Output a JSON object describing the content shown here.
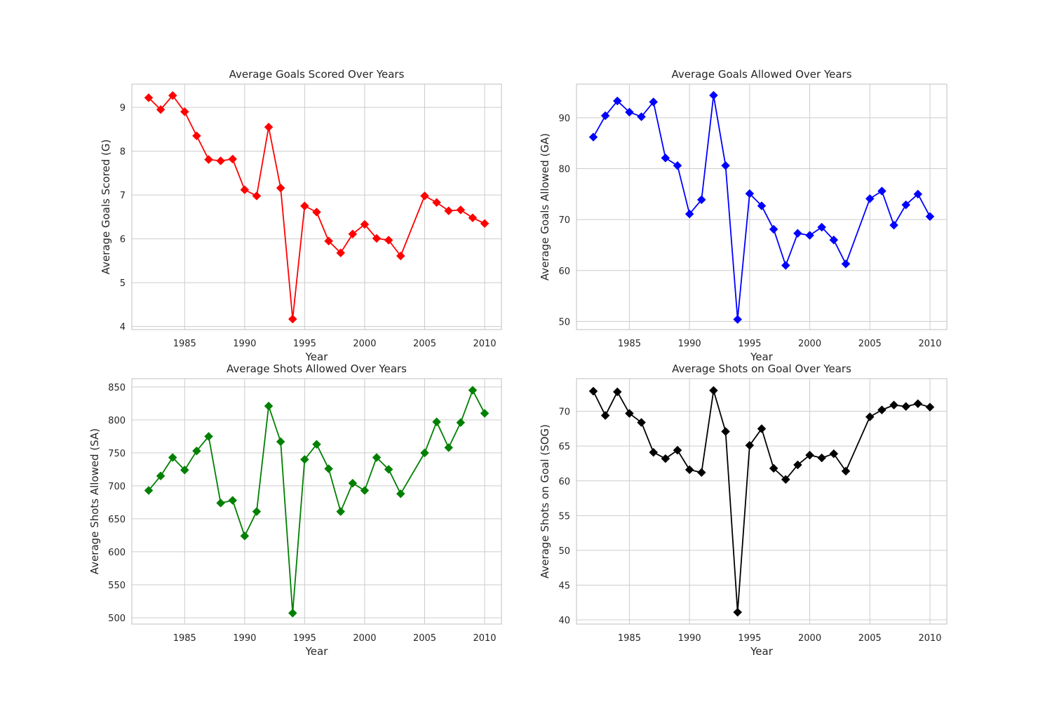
{
  "chart_data": [
    {
      "type": "line",
      "title": "Average Goals Scored Over Years",
      "xlabel": "Year",
      "ylabel": "Average Goals Scored (G)",
      "color": "#ff0000",
      "marker": "diamond",
      "grid": true,
      "xlim": [
        1980.6,
        2011.4
      ],
      "ylim": [
        3.93,
        9.53
      ],
      "xticks": [
        1985,
        1990,
        1995,
        2000,
        2005,
        2010
      ],
      "yticks": [
        4,
        5,
        6,
        7,
        8,
        9
      ],
      "x": [
        1982,
        1983,
        1984,
        1985,
        1986,
        1987,
        1988,
        1989,
        1990,
        1991,
        1992,
        1993,
        1994,
        1995,
        1996,
        1997,
        1998,
        1999,
        2000,
        2001,
        2002,
        2003,
        2005,
        2006,
        2007,
        2008,
        2009,
        2010
      ],
      "series": [
        {
          "values": [
            9.22,
            8.95,
            9.27,
            8.9,
            8.35,
            7.81,
            7.78,
            7.82,
            7.12,
            6.98,
            8.55,
            7.16,
            4.17,
            6.75,
            6.61,
            5.95,
            5.68,
            6.11,
            6.33,
            6.01,
            5.97,
            5.61,
            6.98,
            6.83,
            6.64,
            6.66,
            6.48,
            6.35
          ]
        }
      ]
    },
    {
      "type": "line",
      "title": "Average Goals Allowed Over Years",
      "xlabel": "Year",
      "ylabel": "Average Goals Allowed (GA)",
      "color": "#0000ff",
      "marker": "diamond",
      "grid": true,
      "xlim": [
        1980.6,
        2011.4
      ],
      "ylim": [
        48.4,
        96.6
      ],
      "xticks": [
        1985,
        1990,
        1995,
        2000,
        2005,
        2010
      ],
      "yticks": [
        50,
        60,
        70,
        80,
        90
      ],
      "x": [
        1982,
        1983,
        1984,
        1985,
        1986,
        1987,
        1988,
        1989,
        1990,
        1991,
        1992,
        1993,
        1994,
        1995,
        1996,
        1997,
        1998,
        1999,
        2000,
        2001,
        2002,
        2003,
        2005,
        2006,
        2007,
        2008,
        2009,
        2010
      ],
      "series": [
        {
          "values": [
            86.2,
            90.4,
            93.3,
            91.1,
            90.2,
            93.1,
            82.1,
            80.6,
            71.1,
            73.9,
            94.4,
            80.6,
            50.4,
            75.1,
            72.7,
            68.1,
            61.0,
            67.3,
            66.9,
            68.5,
            66.0,
            61.3,
            74.1,
            75.6,
            68.9,
            72.9,
            75.0,
            70.6
          ]
        }
      ]
    },
    {
      "type": "line",
      "title": "Average Shots Allowed Over Years",
      "xlabel": "Year",
      "ylabel": "Average Shots Allowed (SA)",
      "color": "#008000",
      "marker": "diamond",
      "grid": true,
      "xlim": [
        1980.6,
        2011.4
      ],
      "ylim": [
        490.4,
        862.6
      ],
      "xticks": [
        1985,
        1990,
        1995,
        2000,
        2005,
        2010
      ],
      "yticks": [
        500,
        550,
        600,
        650,
        700,
        750,
        800,
        850
      ],
      "x": [
        1982,
        1983,
        1984,
        1985,
        1986,
        1987,
        1988,
        1989,
        1990,
        1991,
        1992,
        1993,
        1994,
        1995,
        1996,
        1997,
        1998,
        1999,
        2000,
        2001,
        2002,
        2003,
        2005,
        2006,
        2007,
        2008,
        2009,
        2010
      ],
      "series": [
        {
          "values": [
            693,
            715,
            743,
            724,
            753,
            775,
            674,
            678,
            624,
            661,
            821,
            767,
            507,
            740,
            763,
            726,
            661,
            704,
            693,
            743,
            725,
            688,
            750,
            797,
            758,
            796,
            845,
            810
          ]
        }
      ]
    },
    {
      "type": "line",
      "title": "Average Shots on Goal Over Years",
      "xlabel": "Year",
      "ylabel": "Average Shots on Goal (SOG)",
      "color": "#000000",
      "marker": "diamond",
      "grid": true,
      "xlim": [
        1980.6,
        2011.4
      ],
      "ylim": [
        39.4,
        74.7
      ],
      "xticks": [
        1985,
        1990,
        1995,
        2000,
        2005,
        2010
      ],
      "yticks": [
        40,
        45,
        50,
        55,
        60,
        65,
        70
      ],
      "x": [
        1982,
        1983,
        1984,
        1985,
        1986,
        1987,
        1988,
        1989,
        1990,
        1991,
        1992,
        1993,
        1994,
        1995,
        1996,
        1997,
        1998,
        1999,
        2000,
        2001,
        2002,
        2003,
        2005,
        2006,
        2007,
        2008,
        2009,
        2010
      ],
      "series": [
        {
          "values": [
            72.9,
            69.4,
            72.8,
            69.7,
            68.4,
            64.1,
            63.2,
            64.4,
            61.6,
            61.2,
            73.0,
            67.1,
            41.1,
            65.1,
            67.5,
            61.8,
            60.2,
            62.3,
            63.7,
            63.3,
            63.9,
            61.4,
            69.2,
            70.2,
            70.9,
            70.7,
            71.1,
            70.6
          ]
        }
      ]
    }
  ]
}
